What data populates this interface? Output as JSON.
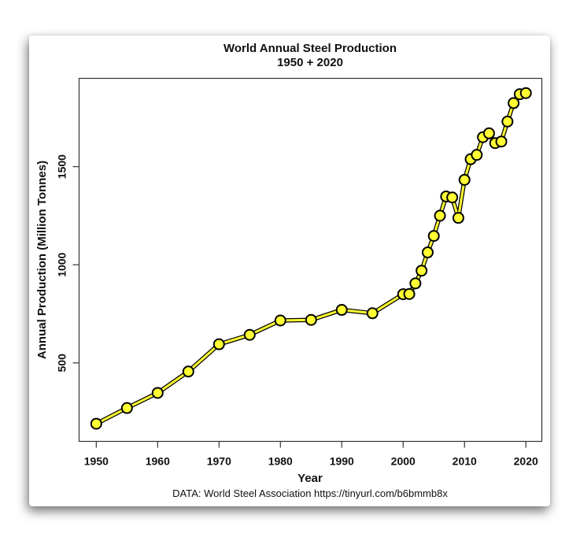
{
  "chart_data": {
    "type": "line",
    "title": "World Annual Steel Production",
    "subtitle": "1950 + 2020",
    "xlabel": "Year",
    "ylabel": "Annual Production (Million Tonnes)",
    "caption": "DATA: World Steel Association https://tinyurl.com/b6bmmb8x",
    "xlim": [
      1947.2,
      2022.6
    ],
    "ylim": [
      100,
      1950
    ],
    "x_ticks": [
      1950,
      1960,
      1970,
      1980,
      1990,
      2000,
      2010,
      2020
    ],
    "y_ticks": [
      500,
      1000,
      1500
    ],
    "grid": false,
    "marker_color": "#ffff33",
    "line_color": "#ffff33",
    "edge_color": "#000000",
    "series": [
      {
        "name": "World Annual Steel Production",
        "x": [
          1950,
          1955,
          1960,
          1965,
          1970,
          1975,
          1980,
          1985,
          1990,
          1995,
          2000,
          2001,
          2002,
          2003,
          2004,
          2005,
          2006,
          2007,
          2008,
          2009,
          2010,
          2011,
          2012,
          2013,
          2014,
          2015,
          2016,
          2017,
          2018,
          2019,
          2020
        ],
        "y": [
          190,
          270,
          347,
          456,
          595,
          643,
          716,
          719,
          770,
          753,
          850,
          851,
          905,
          970,
          1063,
          1147,
          1250,
          1348,
          1343,
          1239,
          1433,
          1538,
          1560,
          1650,
          1670,
          1620,
          1628,
          1730,
          1824,
          1869,
          1875
        ]
      }
    ]
  }
}
